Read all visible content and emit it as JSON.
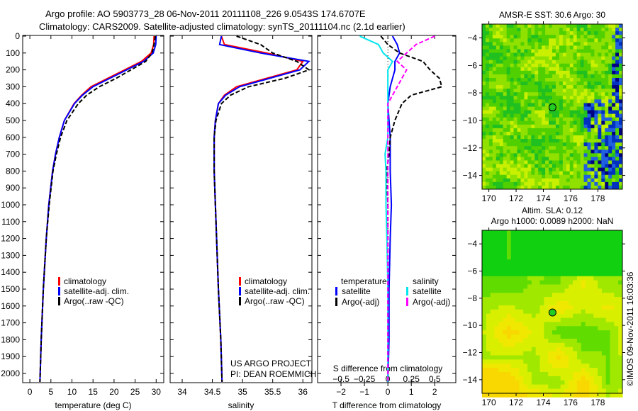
{
  "header": {
    "title_line1": "Argo profile: AO 5903773_28 06-Nov-2011 20111108_226 9.0543S 174.6707E",
    "title_line2": "Climatology: CARS2009. Satellite-adjusted climatology: synTS_20111104.nc (2.1d earlier)"
  },
  "credits": {
    "project": "US ARGO PROJECT",
    "pi": "PI: DEAN ROEMMICH"
  },
  "timestamp": "©IMOS 09-Nov-2011 16:03:36",
  "colors": {
    "climatology": "#ff0000",
    "satellite": "#0000ff",
    "argo": "#000000",
    "sal_satellite": "#00e5ee",
    "sal_argo": "#ff00ff"
  },
  "chart_data": [
    {
      "type": "line",
      "xlabel": "temperature (deg C)",
      "xlim": [
        -1.7,
        31.8
      ],
      "ylim": [
        2050,
        0
      ],
      "xticks": [
        0,
        5,
        10,
        15,
        20,
        25,
        30
      ],
      "yticks": [
        0,
        100,
        200,
        300,
        400,
        500,
        600,
        700,
        800,
        900,
        1000,
        1100,
        1200,
        1300,
        1400,
        1500,
        1600,
        1700,
        1800,
        1900,
        2000
      ],
      "depth": [
        0,
        50,
        100,
        150,
        200,
        250,
        300,
        350,
        400,
        500,
        600,
        700,
        800,
        1000,
        1200,
        1500,
        1800,
        2050
      ],
      "legend": [
        "climatology",
        "satellite-adj. clim.",
        "Argo(..raw -QC)"
      ],
      "series": [
        {
          "name": "climatology",
          "color": "#ff0000",
          "values": [
            29.5,
            29.4,
            28.8,
            26.5,
            22.5,
            18.5,
            14.5,
            12.3,
            10.5,
            8.2,
            7.0,
            6.1,
            5.4,
            4.5,
            3.9,
            3.2,
            2.7,
            2.4
          ]
        },
        {
          "name": "satellite-adj. clim.",
          "color": "#0000ff",
          "values": [
            30.0,
            29.9,
            29.3,
            27.0,
            23.0,
            19.0,
            15.0,
            12.5,
            10.6,
            8.2,
            7.0,
            6.1,
            5.4,
            4.5,
            3.9,
            3.2,
            2.7,
            2.4
          ]
        },
        {
          "name": "Argo(..raw -QC)",
          "color": "#000000",
          "dash": true,
          "values": [
            29.8,
            29.5,
            29.0,
            27.5,
            24.0,
            20.5,
            16.5,
            13.5,
            11.5,
            8.8,
            7.3,
            6.3,
            5.5,
            4.6,
            3.9,
            3.2,
            2.7,
            2.4
          ]
        }
      ]
    },
    {
      "type": "line",
      "xlabel": "salinity",
      "xlim": [
        33.8,
        36.15
      ],
      "ylim": [
        2050,
        0
      ],
      "xticks": [
        34,
        34.5,
        35,
        35.5,
        36
      ],
      "depth": [
        0,
        50,
        100,
        150,
        200,
        250,
        300,
        350,
        400,
        500,
        600,
        700,
        800,
        1000,
        1200,
        1500,
        1800,
        2050
      ],
      "legend": [
        "climatology",
        "satellite-adj. clim.",
        "Argo(..raw -QC)"
      ],
      "series": [
        {
          "name": "climatology",
          "color": "#ff0000",
          "values": [
            34.65,
            34.7,
            35.4,
            36.0,
            35.9,
            35.4,
            34.9,
            34.7,
            34.6,
            34.55,
            34.53,
            34.53,
            34.53,
            34.55,
            34.57,
            34.6,
            34.64,
            34.66
          ]
        },
        {
          "name": "satellite-adj. clim.",
          "color": "#0000ff",
          "values": [
            34.65,
            34.62,
            35.3,
            36.1,
            35.95,
            35.45,
            34.95,
            34.72,
            34.6,
            34.55,
            34.53,
            34.53,
            34.53,
            34.55,
            34.57,
            34.6,
            34.64,
            34.66
          ]
        },
        {
          "name": "Argo(..raw -QC)",
          "color": "#000000",
          "dash": true,
          "values": [
            34.9,
            35.3,
            35.5,
            35.9,
            36.1,
            35.7,
            35.1,
            34.8,
            34.65,
            34.56,
            34.53,
            34.53,
            34.53,
            34.55,
            34.57,
            34.6,
            34.64,
            34.66
          ]
        }
      ]
    },
    {
      "type": "line",
      "xlabel": "T difference from climatology",
      "xlabel2": "S difference from climatology",
      "xlim": [
        -3,
        2.9
      ],
      "xlim_s": [
        -0.75,
        0.725
      ],
      "ylim": [
        2050,
        0
      ],
      "xticks": [
        -2,
        -1,
        0,
        1,
        2
      ],
      "xticks_s": [
        "-0.5",
        "-0.25",
        "0",
        "0.25",
        "0.5"
      ],
      "xticks_s_values": [
        -0.5,
        -0.25,
        0,
        0.25,
        0.5
      ],
      "depth": [
        0,
        50,
        100,
        150,
        200,
        250,
        300,
        350,
        400,
        500,
        600,
        700,
        800,
        1000,
        1200,
        1500,
        1800,
        2050
      ],
      "legend": {
        "temperature": "temperature",
        "salinity": "salinity",
        "t_sat": "satellite",
        "t_argo": "Argo(-adj)",
        "s_sat": "satellite",
        "s_argo": "Argo(-adj)"
      },
      "series": [
        {
          "name": "T satellite",
          "color": "#0000ff",
          "axis": "T",
          "values": [
            0.2,
            0.4,
            0.5,
            0.3,
            0.3,
            0.2,
            0.1,
            0.05,
            0,
            0.05,
            0.1,
            0.1,
            0.1,
            0.15,
            0.1,
            0.05,
            0.05,
            0
          ]
        },
        {
          "name": "T Argo(-adj)",
          "color": "#000000",
          "axis": "T",
          "dash": true,
          "values": [
            -0.3,
            0,
            0.5,
            1.5,
            1.8,
            2.2,
            2.3,
            1.0,
            0.6,
            0.3,
            0.1,
            0.05,
            -0.05,
            0,
            0,
            0,
            0,
            0
          ]
        },
        {
          "name": "S satellite",
          "color": "#00e5ee",
          "axis": "S",
          "values": [
            -0.3,
            -0.1,
            -0.05,
            0.05,
            0,
            0,
            0,
            0,
            0,
            0,
            0,
            -0.03,
            -0.02,
            -0.02,
            -0.01,
            0,
            0,
            0
          ]
        },
        {
          "name": "S Argo(-adj)",
          "color": "#ff00ff",
          "axis": "S",
          "dash": true,
          "values": [
            0.5,
            0.3,
            0.2,
            0.1,
            0.2,
            0.15,
            0.1,
            0.05,
            0,
            0,
            0,
            0,
            0,
            0,
            0,
            0,
            0,
            0
          ]
        }
      ]
    },
    {
      "type": "heatmap",
      "title": "AMSR-E SST: 30.6  Argo: 30",
      "xlim": [
        169.5,
        179.8
      ],
      "ylim": [
        -15,
        -3
      ],
      "xticks": [
        170,
        172,
        174,
        176,
        178
      ],
      "yticks": [
        -4,
        -6,
        -8,
        -10,
        -12,
        -14
      ],
      "marker": {
        "lon": 174.6707,
        "lat": -9.0543
      }
    },
    {
      "type": "heatmap",
      "title": "Altim. SLA: 0.12",
      "subtitle": "Argo h1000: 0.0089 h2000: NaN",
      "xlim": [
        169.5,
        179.8
      ],
      "ylim": [
        -15,
        -3
      ],
      "xticks": [
        170,
        172,
        174,
        176,
        178
      ],
      "yticks": [
        -4,
        -6,
        -8,
        -10,
        -12,
        -14
      ],
      "marker": {
        "lon": 174.6707,
        "lat": -9.0543
      }
    }
  ]
}
